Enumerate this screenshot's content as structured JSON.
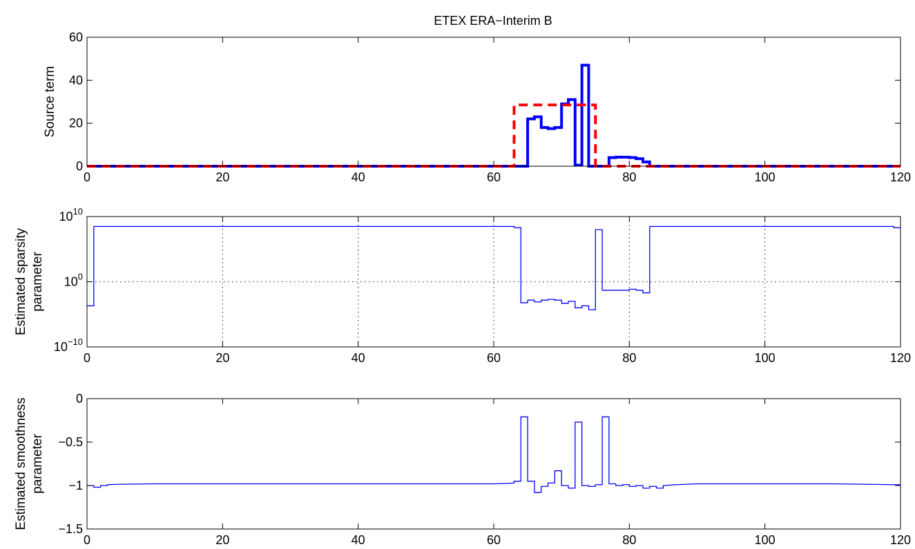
{
  "figure": {
    "title": "ETEX ERA−Interim B"
  },
  "chart_data": [
    {
      "type": "line",
      "title": "ETEX ERA−Interim B",
      "ylabel": "Source term",
      "xlim": [
        0,
        120
      ],
      "ylim": [
        0,
        60
      ],
      "xticks": [
        0,
        20,
        40,
        60,
        80,
        100,
        120
      ],
      "yticks": [
        0,
        20,
        40,
        60
      ],
      "grid": false,
      "series": [
        {
          "color": "#0000ff",
          "style": "solid",
          "width": "thick",
          "x": [
            0,
            65,
            65,
            66,
            66,
            67,
            67,
            68,
            68,
            69,
            69,
            70,
            70,
            71,
            71,
            72,
            72,
            73,
            73,
            74,
            74,
            75,
            75,
            77,
            77,
            78,
            78,
            80,
            80,
            81,
            81,
            82,
            82,
            83,
            83,
            120
          ],
          "y": [
            0,
            0,
            22,
            22,
            23,
            23,
            18,
            18,
            17.5,
            17.5,
            18,
            18,
            29,
            29,
            31,
            31,
            0.5,
            0.5,
            47,
            47,
            0,
            0,
            0,
            0,
            4,
            4,
            4.2,
            4.2,
            4,
            4,
            3.5,
            3.5,
            2,
            2,
            0,
            0
          ]
        },
        {
          "color": "#ff0000",
          "style": "dashed",
          "width": "thick",
          "x": [
            0,
            63,
            63,
            75,
            75,
            120
          ],
          "y": [
            0,
            0,
            28.5,
            28.5,
            0,
            0
          ]
        }
      ]
    },
    {
      "type": "line",
      "ylabel": "Estimated sparsity parameter",
      "ylabel_lines": [
        "Estimated sparsity",
        "parameter"
      ],
      "xlim": [
        0,
        120
      ],
      "ylim": [
        1e-10,
        10000000000.0
      ],
      "yscale": "log",
      "xticks": [
        0,
        20,
        40,
        60,
        80,
        100,
        120
      ],
      "ytick_base": "10",
      "ytick_exponents": [
        "−10",
        "0",
        "10"
      ],
      "yticks": [
        1e-10,
        1,
        10000000000.0
      ],
      "grid": true,
      "series": [
        {
          "color": "#0000ff",
          "style": "solid",
          "width": "thin",
          "x": [
            0,
            1,
            1,
            63,
            63,
            64,
            64,
            65,
            65,
            66,
            66,
            67,
            67,
            68,
            68,
            69,
            69,
            70,
            70,
            71,
            71,
            72,
            72,
            73,
            73,
            74,
            74,
            75,
            75,
            76,
            76,
            80,
            80,
            81,
            81,
            82,
            82,
            83,
            83,
            119,
            119,
            120
          ],
          "y": [
            0.0002,
            0.0002,
            300000000.0,
            300000000.0,
            200000000.0,
            200000000.0,
            0.0006,
            0.0006,
            0.0015,
            0.0015,
            0.0008,
            0.0008,
            0.0015,
            0.0015,
            0.002,
            0.002,
            0.0015,
            0.0015,
            0.0005,
            0.0005,
            0.001,
            0.001,
            0.0001,
            0.0001,
            0.0002,
            0.0002,
            5e-05,
            5e-05,
            100000000.0,
            100000000.0,
            0.05,
            0.05,
            0.07,
            0.07,
            0.05,
            0.05,
            0.02,
            0.02,
            300000000.0,
            300000000.0,
            200000000.0,
            200000000.0
          ]
        }
      ]
    },
    {
      "type": "line",
      "ylabel": "Estimated smoothness parameter",
      "ylabel_lines": [
        "Estimated smoothness",
        "parameter"
      ],
      "xlim": [
        0,
        120
      ],
      "ylim": [
        -1.5,
        0
      ],
      "xticks": [
        0,
        20,
        40,
        60,
        80,
        100,
        120
      ],
      "yticks": [
        -1.5,
        -1,
        -0.5,
        0
      ],
      "ytick_labels": [
        "−1.5",
        "−1",
        "−0.5",
        "0"
      ],
      "grid": false,
      "series": [
        {
          "color": "#0000ff",
          "style": "solid",
          "width": "thin",
          "x": [
            0,
            1,
            1,
            2,
            2,
            3,
            3,
            5,
            10,
            20,
            40,
            60,
            62,
            63,
            63,
            64,
            64,
            65,
            65,
            66,
            66,
            67,
            67,
            68,
            68,
            69,
            69,
            70,
            70,
            71,
            71,
            72,
            72,
            73,
            73,
            74,
            74,
            75,
            75,
            76,
            76,
            77,
            77,
            78,
            78,
            79,
            79,
            80,
            80,
            81,
            81,
            82,
            82,
            83,
            83,
            84,
            84,
            85,
            85,
            87,
            90,
            100,
            110,
            119,
            120
          ],
          "y": [
            -1.0,
            -1.0,
            -1.02,
            -1.02,
            -1.0,
            -1.0,
            -0.99,
            -0.985,
            -0.98,
            -0.98,
            -0.98,
            -0.98,
            -0.975,
            -0.97,
            -0.95,
            -0.95,
            -0.21,
            -0.21,
            -0.95,
            -0.95,
            -1.08,
            -1.08,
            -1.01,
            -1.01,
            -0.97,
            -0.97,
            -0.83,
            -0.83,
            -1.0,
            -1.0,
            -1.03,
            -1.03,
            -0.27,
            -0.27,
            -1.0,
            -1.0,
            -1.01,
            -1.01,
            -0.99,
            -0.99,
            -0.21,
            -0.21,
            -0.98,
            -0.98,
            -1.0,
            -1.0,
            -0.99,
            -0.99,
            -1.01,
            -1.01,
            -1.0,
            -1.0,
            -1.03,
            -1.03,
            -1.01,
            -1.01,
            -1.03,
            -1.03,
            -1.0,
            -0.99,
            -0.98,
            -0.98,
            -0.98,
            -0.99,
            -0.99
          ]
        }
      ]
    }
  ]
}
